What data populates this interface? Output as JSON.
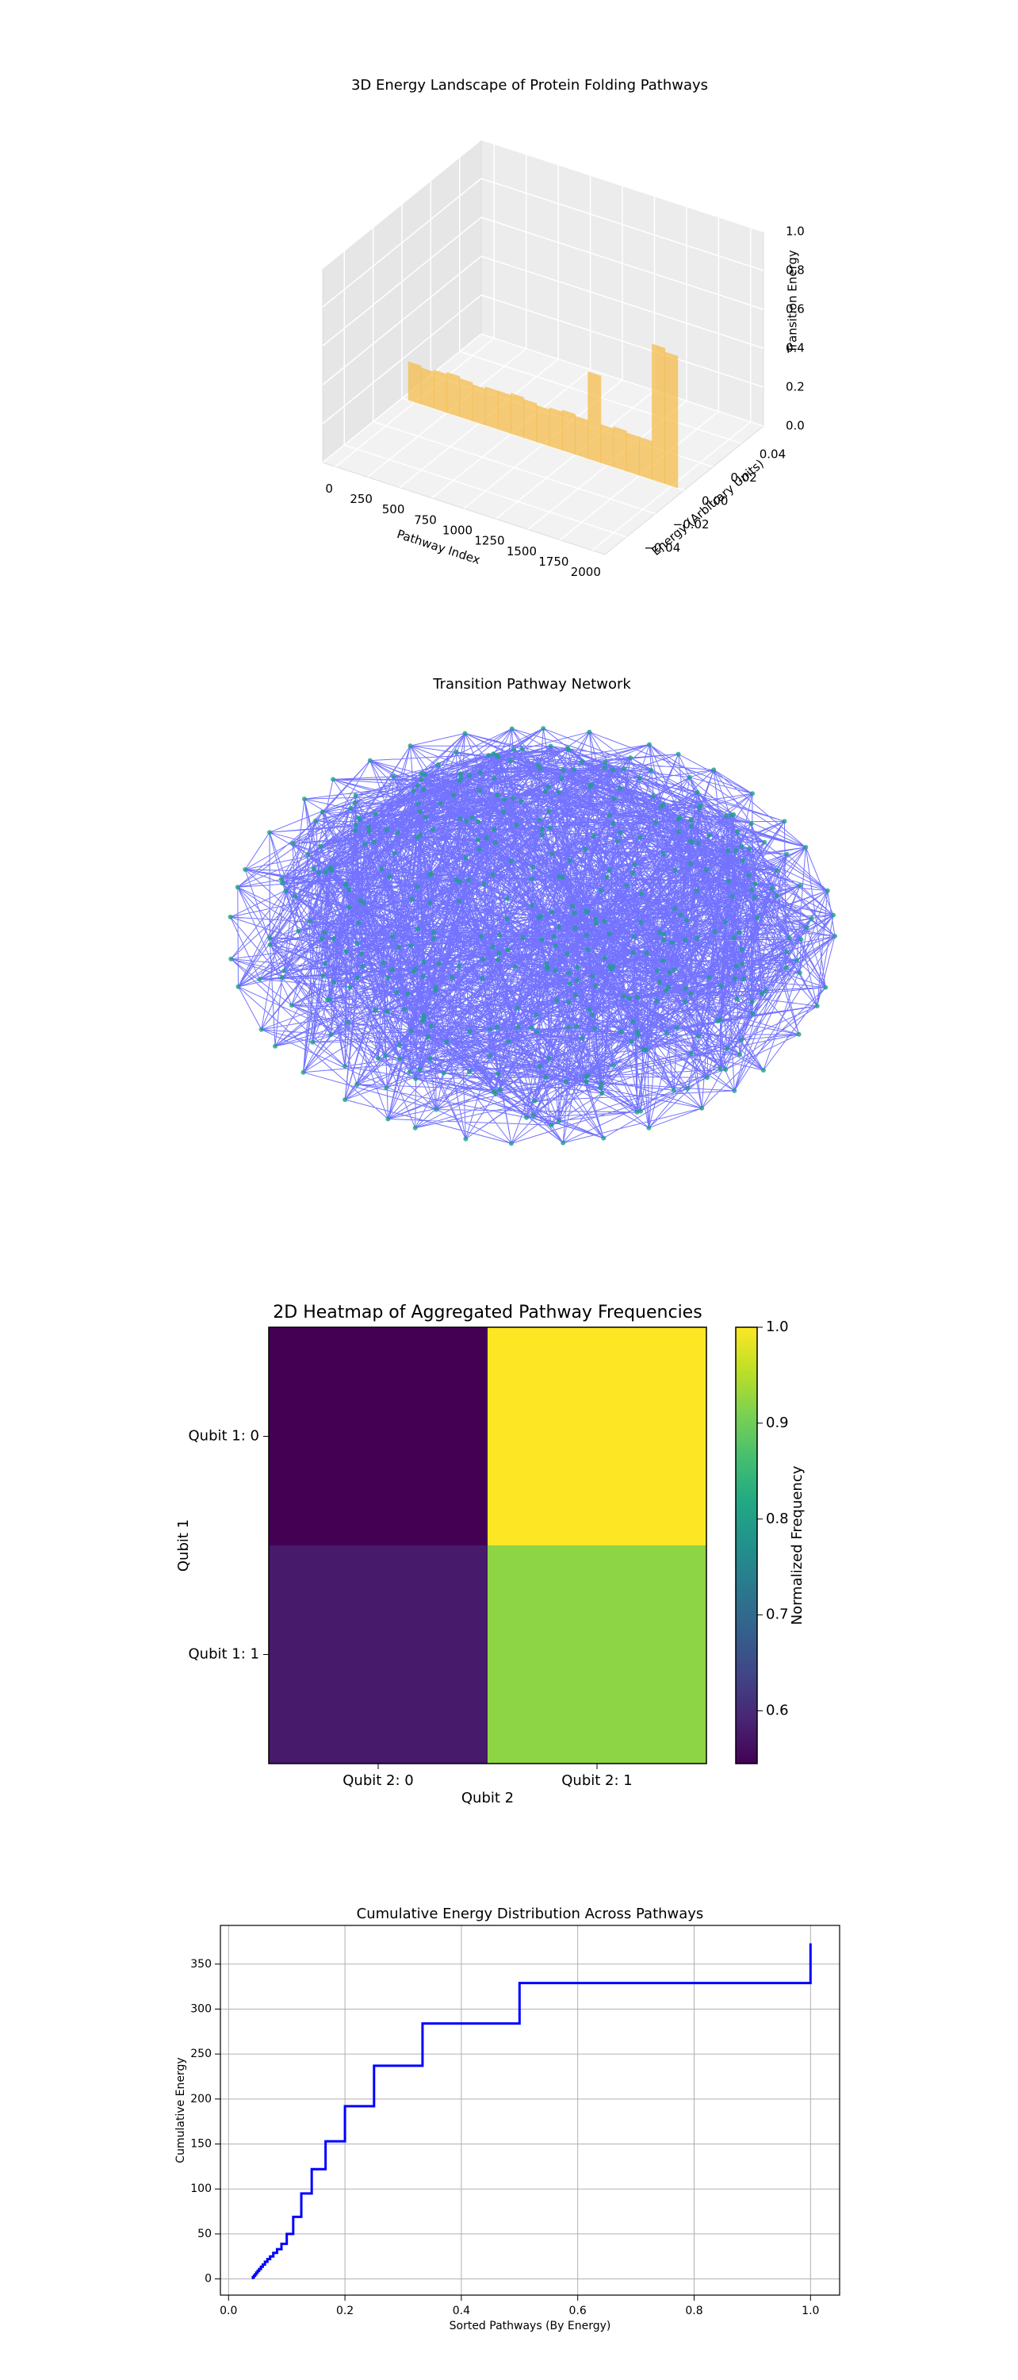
{
  "chart_data": [
    {
      "type": "bar3d",
      "title": "3D Energy Landscape of Protein Folding Pathways",
      "xlabel": "Pathway Index",
      "ylabel": "Energy (Arbitrary Units)",
      "zlabel": "Transition Energy",
      "x": [
        0,
        100,
        200,
        300,
        400,
        500,
        600,
        700,
        800,
        900,
        1000,
        1100,
        1200,
        1300,
        1400,
        1500,
        1600,
        1700,
        1800,
        1900,
        2000
      ],
      "values": [
        0.2,
        0.19,
        0.2,
        0.21,
        0.2,
        0.19,
        0.2,
        0.2,
        0.21,
        0.2,
        0.19,
        0.2,
        0.21,
        0.2,
        0.45,
        0.2,
        0.21,
        0.2,
        0.2,
        0.7,
        0.68
      ],
      "color": "#f5b942",
      "xlim": [
        -100,
        2100
      ],
      "ylim": [
        -0.055,
        0.055
      ],
      "zlim": [
        0,
        1
      ],
      "xticks": [
        0,
        250,
        500,
        750,
        1000,
        1250,
        1500,
        1750,
        2000
      ],
      "yticks": [
        {
          "value": -0.04,
          "label": "−0.04"
        },
        {
          "value": -0.02,
          "label": "−0.02"
        },
        {
          "value": 0,
          "label": "0.00"
        },
        {
          "value": 0.02,
          "label": "0.02"
        },
        {
          "value": 0.04,
          "label": "0.04"
        }
      ],
      "zticks": [
        {
          "value": 0,
          "label": "0.0"
        },
        0.2,
        0.4,
        0.6,
        0.8,
        {
          "value": 1,
          "label": "1.0"
        }
      ]
    },
    {
      "type": "network",
      "title": "Transition Pathway Network"
    },
    {
      "type": "heatmap",
      "title": "2D Heatmap of Aggregated Pathway Frequencies",
      "xlabel": "Qubit 2",
      "ylabel": "Qubit 1",
      "colorbar_label": "Normalized Frequency",
      "rows": [
        "Qubit 1: 0",
        "Qubit 1: 1"
      ],
      "columns": [
        "Qubit 2: 0",
        "Qubit 2: 1"
      ],
      "values": [
        [
          0.545,
          1.0
        ],
        [
          0.578,
          0.922
        ]
      ],
      "cmap": "viridis",
      "clim": [
        0.545,
        1.0
      ],
      "cticks": [
        0.6,
        0.7,
        0.8,
        0.9,
        {
          "value": 1,
          "label": "1.0"
        }
      ]
    },
    {
      "type": "line",
      "title": "Cumulative Energy Distribution Across Pathways",
      "xlabel": "Sorted Pathways (By Energy)",
      "ylabel": "Cumulative Energy",
      "drawstyle": "steps-post",
      "color": "#0000ff",
      "grid": true,
      "x": [
        0.04,
        0.0417,
        0.0435,
        0.0455,
        0.0476,
        0.05,
        0.0526,
        0.0556,
        0.0588,
        0.0625,
        0.0667,
        0.0714,
        0.0769,
        0.0833,
        0.0909,
        0.1,
        0.1111,
        0.125,
        0.1429,
        0.1667,
        0.2,
        0.25,
        0.3333,
        0.5,
        1.0
      ],
      "values": [
        1,
        2,
        3.5,
        5,
        7,
        9,
        11,
        13.5,
        16,
        19,
        22,
        25,
        29,
        33,
        39,
        50,
        69,
        95,
        122,
        153,
        192,
        237,
        284,
        329,
        373
      ],
      "xlim": [
        -0.014,
        1.05
      ],
      "ylim": [
        -18,
        393
      ],
      "xticks": [
        {
          "value": 0,
          "label": "0.0"
        },
        0.2,
        0.4,
        0.6,
        0.8,
        {
          "value": 1,
          "label": "1.0"
        }
      ],
      "yticks": [
        0,
        50,
        100,
        150,
        200,
        250,
        300,
        350
      ]
    }
  ]
}
